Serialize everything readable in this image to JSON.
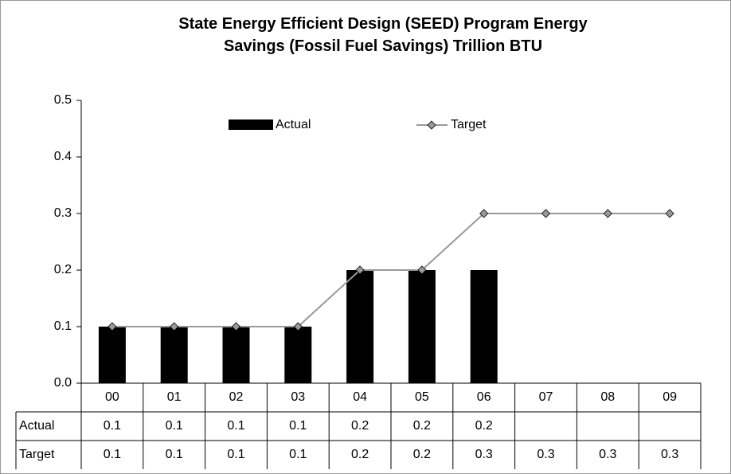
{
  "chart_data": {
    "type": "bar_line",
    "title": "State Energy Efficient Design (SEED) Program Energy\nSavings (Fossil Fuel Savings) Trillion BTU",
    "categories": [
      "00",
      "01",
      "02",
      "03",
      "04",
      "05",
      "06",
      "07",
      "08",
      "09"
    ],
    "series": [
      {
        "name": "Actual",
        "type": "bar",
        "color": "#000000",
        "values": [
          0.1,
          0.1,
          0.1,
          0.1,
          0.2,
          0.2,
          0.2,
          null,
          null,
          null
        ]
      },
      {
        "name": "Target",
        "type": "line",
        "color": "#999999",
        "values": [
          0.1,
          0.1,
          0.1,
          0.1,
          0.2,
          0.2,
          0.3,
          0.3,
          0.3,
          0.3
        ]
      }
    ],
    "ylim": [
      0,
      0.5
    ],
    "yticks": [
      {
        "value": 0,
        "label": "0.0"
      },
      0.1,
      0.2,
      0.3,
      0.4,
      0.5
    ],
    "grid": false,
    "data_table": true
  }
}
